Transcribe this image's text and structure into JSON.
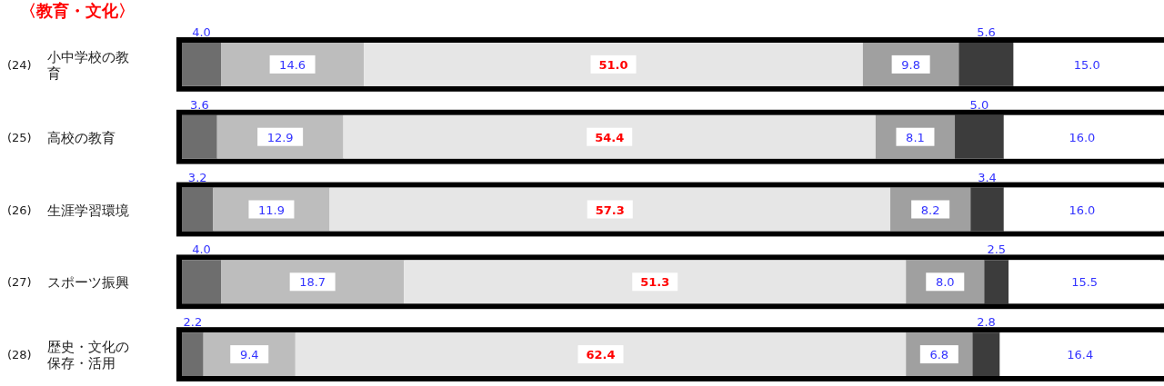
{
  "chart_data": {
    "type": "bar",
    "orientation": "horizontal",
    "stacked": true,
    "title": "〈教育・文化〉",
    "categories": [
      "(24) 小中学校の教育",
      "(25) 高校の教育",
      "(26) 生涯学習環境",
      "(27) スポーツ振興",
      "(28) 歴史・文化の保存・活用"
    ],
    "series": [
      {
        "color": "#6e6e6e",
        "values": [
          4.0,
          3.6,
          3.2,
          4.0,
          2.2
        ],
        "value_labels": [
          "4.0",
          "3.6",
          "3.2",
          "4.0",
          "2.2"
        ]
      },
      {
        "color": "#bdbdbd",
        "values": [
          14.6,
          12.9,
          11.9,
          18.7,
          9.4
        ],
        "value_labels": [
          "14.6",
          "12.9",
          "11.9",
          "18.7",
          "9.4"
        ]
      },
      {
        "color": "#e6e6e6",
        "values": [
          51.0,
          54.4,
          57.3,
          51.3,
          62.4
        ],
        "value_labels": [
          "51.0",
          "54.4",
          "57.3",
          "51.3",
          "62.4"
        ]
      },
      {
        "color": "#a0a0a0",
        "values": [
          9.8,
          8.1,
          8.2,
          8.0,
          6.8
        ],
        "value_labels": [
          "9.8",
          "8.1",
          "8.2",
          "8.0",
          "6.8"
        ]
      },
      {
        "color": "#3c3c3c",
        "values": [
          5.6,
          5.0,
          3.4,
          2.5,
          2.8
        ],
        "value_labels": [
          "5.6",
          "5.0",
          "3.4",
          "2.5",
          "2.8"
        ]
      },
      {
        "color": "#ffffff",
        "values": [
          15.0,
          16.0,
          16.0,
          15.5,
          16.4
        ],
        "value_labels": [
          "15.0",
          "16.0",
          "16.0",
          "15.5",
          "16.4"
        ]
      }
    ]
  }
}
